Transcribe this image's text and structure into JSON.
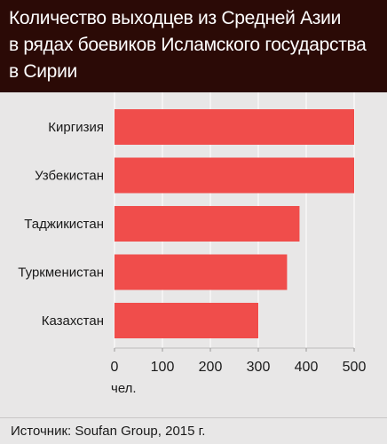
{
  "header": {
    "title_lines": [
      "Количество выходцев из Средней Азии",
      "в рядах боевиков Исламского государства",
      "в Сирии"
    ]
  },
  "footer": {
    "source": "Источник: Soufan Group, 2015 г."
  },
  "colors": {
    "bar": "#f04d4b",
    "header_bg": "#2b0a06",
    "panel_bg": "#e8e7e7",
    "grid": "#ffffff"
  },
  "chart_data": {
    "type": "bar",
    "orientation": "horizontal",
    "categories": [
      "Киргизия",
      "Узбекистан",
      "Таджикистан",
      "Туркменистан",
      "Казахстан"
    ],
    "values": [
      500,
      500,
      386,
      360,
      300
    ],
    "xlim": [
      0,
      500
    ],
    "xticks": [
      0,
      100,
      200,
      300,
      400,
      500
    ],
    "xlabel": "чел.",
    "ylabel": "",
    "grid": true
  }
}
